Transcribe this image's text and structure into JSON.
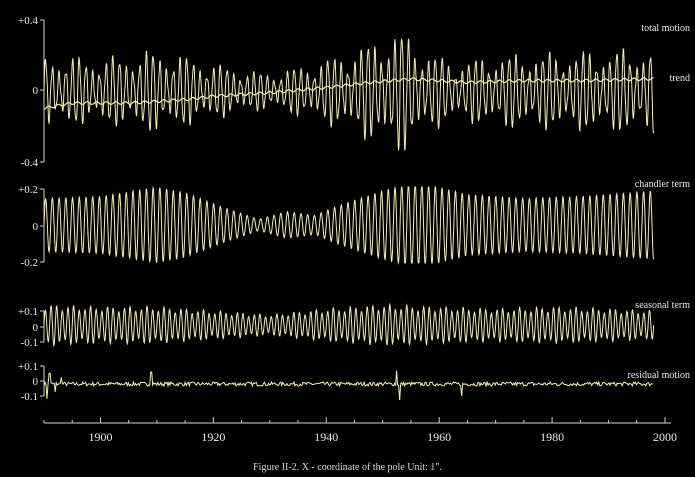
{
  "caption": "Figure II-2. X - coordinate of the pole      Unit: 1\".",
  "colors": {
    "background": "#000000",
    "trace": "#f4eeb0",
    "axis": "#cfcfcf",
    "text": "#e8e8e8"
  },
  "chart_data": {
    "type": "line",
    "x_range": [
      1890,
      2000
    ],
    "x_ticks": [
      "1900",
      "1920",
      "1940",
      "1960",
      "1980",
      "2000"
    ],
    "panels": [
      {
        "key": "total",
        "ylim": [
          -0.4,
          0.4
        ],
        "y_ticks": [
          "+0.4",
          "0",
          "-0.4"
        ],
        "labels": [
          "total motion",
          "trend"
        ],
        "series": [
          {
            "name": "total motion",
            "x_start": 1890,
            "x_end": 1998,
            "envelope": [
              [
                1890,
                0.2
              ],
              [
                1900,
                0.18
              ],
              [
                1910,
                0.23
              ],
              [
                1925,
                0.12
              ],
              [
                1930,
                0.1
              ],
              [
                1937,
                0.15
              ],
              [
                1942,
                0.2
              ],
              [
                1950,
                0.3
              ],
              [
                1953,
                0.35
              ],
              [
                1958,
                0.22
              ],
              [
                1963,
                0.16
              ],
              [
                1970,
                0.2
              ],
              [
                1985,
                0.22
              ],
              [
                1998,
                0.24
              ]
            ]
          },
          {
            "name": "trend",
            "points": [
              [
                1890,
                -0.1
              ],
              [
                1895,
                -0.07
              ],
              [
                1900,
                -0.07
              ],
              [
                1905,
                -0.07
              ],
              [
                1910,
                -0.06
              ],
              [
                1915,
                -0.05
              ],
              [
                1920,
                -0.03
              ],
              [
                1930,
                -0.01
              ],
              [
                1940,
                0.02
              ],
              [
                1948,
                0.05
              ],
              [
                1955,
                0.07
              ],
              [
                1960,
                0.06
              ],
              [
                1965,
                0.05
              ],
              [
                1975,
                0.06
              ],
              [
                1985,
                0.06
              ],
              [
                1998,
                0.07
              ]
            ]
          }
        ]
      },
      {
        "key": "chandler",
        "ylim": [
          -0.2,
          0.2
        ],
        "y_ticks": [
          "+0.2",
          "0",
          "-0.2"
        ],
        "labels": [
          "chandler term"
        ],
        "series": [
          {
            "name": "chandler term",
            "x_start": 1890,
            "x_end": 1998,
            "envelope": [
              [
                1890,
                0.14
              ],
              [
                1900,
                0.15
              ],
              [
                1910,
                0.2
              ],
              [
                1915,
                0.17
              ],
              [
                1922,
                0.09
              ],
              [
                1928,
                0.03
              ],
              [
                1933,
                0.07
              ],
              [
                1938,
                0.05
              ],
              [
                1942,
                0.1
              ],
              [
                1950,
                0.18
              ],
              [
                1955,
                0.22
              ],
              [
                1960,
                0.2
              ],
              [
                1965,
                0.16
              ],
              [
                1975,
                0.14
              ],
              [
                1985,
                0.15
              ],
              [
                1998,
                0.18
              ]
            ]
          }
        ]
      },
      {
        "key": "seasonal",
        "ylim": [
          -0.12,
          0.12
        ],
        "y_ticks": [
          "+0.1",
          "0",
          "-0.1"
        ],
        "labels": [
          "seasonal term"
        ],
        "series": [
          {
            "name": "seasonal term",
            "x_start": 1890,
            "x_end": 1998,
            "envelope": [
              [
                1890,
                0.1
              ],
              [
                1900,
                0.09
              ],
              [
                1910,
                0.09
              ],
              [
                1920,
                0.07
              ],
              [
                1930,
                0.05
              ],
              [
                1940,
                0.08
              ],
              [
                1950,
                0.1
              ],
              [
                1960,
                0.09
              ],
              [
                1970,
                0.08
              ],
              [
                1980,
                0.09
              ],
              [
                1990,
                0.08
              ],
              [
                1998,
                0.07
              ]
            ]
          }
        ]
      },
      {
        "key": "residual",
        "ylim": [
          -0.12,
          0.12
        ],
        "y_ticks": [
          "+0.1",
          "0",
          "-0.1"
        ],
        "labels": [
          "residual motion"
        ],
        "series": [
          {
            "name": "residual motion",
            "x_start": 1890,
            "x_end": 1998,
            "spikes": [
              [
                1890.5,
                -0.11
              ],
              [
                1891,
                0.08
              ],
              [
                1892,
                -0.06
              ],
              [
                1893,
                0.05
              ],
              [
                1909,
                0.09
              ],
              [
                1952.5,
                0.1
              ],
              [
                1953,
                -0.12
              ],
              [
                1964,
                -0.09
              ]
            ]
          }
        ]
      }
    ]
  }
}
